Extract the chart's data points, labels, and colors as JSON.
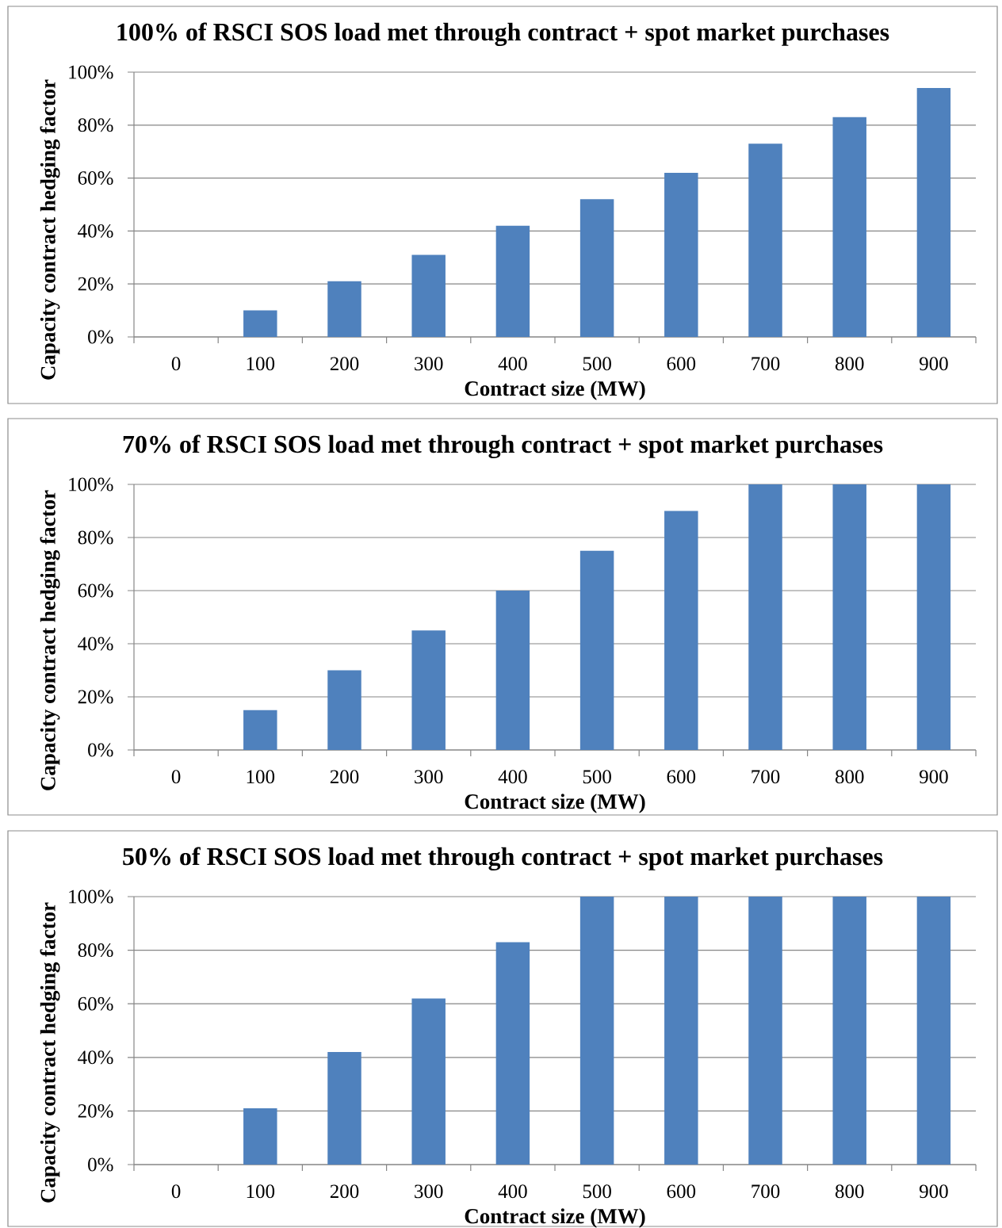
{
  "chart_data": [
    {
      "type": "bar",
      "title": "100% of RSCI SOS load met through contract + spot market purchases",
      "xlabel": "Contract size (MW)",
      "ylabel": "Capacity contract hedging factor",
      "categories": [
        "0",
        "100",
        "200",
        "300",
        "400",
        "500",
        "600",
        "700",
        "800",
        "900"
      ],
      "values": [
        0,
        10,
        21,
        31,
        42,
        52,
        62,
        73,
        83,
        94
      ],
      "color": "#4f81bd",
      "ylim": [
        0,
        100
      ],
      "yticks": [
        {
          "value": 0,
          "label": "0%"
        },
        {
          "value": 20,
          "label": "20%"
        },
        {
          "value": 40,
          "label": "40%"
        },
        {
          "value": 60,
          "label": "60%"
        },
        {
          "value": 80,
          "label": "80%"
        },
        {
          "value": 100,
          "label": "100%"
        }
      ],
      "grid": "y"
    },
    {
      "type": "bar",
      "title": "70% of RSCI SOS load met through contract + spot market purchases",
      "xlabel": "Contract size (MW)",
      "ylabel": "Capacity contract hedging factor",
      "categories": [
        "0",
        "100",
        "200",
        "300",
        "400",
        "500",
        "600",
        "700",
        "800",
        "900"
      ],
      "values": [
        0,
        15,
        30,
        45,
        60,
        75,
        90,
        100,
        100,
        100
      ],
      "color": "#4f81bd",
      "ylim": [
        0,
        100
      ],
      "yticks": [
        {
          "value": 0,
          "label": "0%"
        },
        {
          "value": 20,
          "label": "20%"
        },
        {
          "value": 40,
          "label": "40%"
        },
        {
          "value": 60,
          "label": "60%"
        },
        {
          "value": 80,
          "label": "80%"
        },
        {
          "value": 100,
          "label": "100%"
        }
      ],
      "grid": "y"
    },
    {
      "type": "bar",
      "title": "50% of RSCI SOS load met through contract + spot market purchases",
      "xlabel": "Contract size (MW)",
      "ylabel": "Capacity contract hedging factor",
      "categories": [
        "0",
        "100",
        "200",
        "300",
        "400",
        "500",
        "600",
        "700",
        "800",
        "900"
      ],
      "values": [
        0,
        21,
        42,
        62,
        83,
        100,
        100,
        100,
        100,
        100
      ],
      "color": "#4f81bd",
      "ylim": [
        0,
        100
      ],
      "yticks": [
        {
          "value": 0,
          "label": "0%"
        },
        {
          "value": 20,
          "label": "20%"
        },
        {
          "value": 40,
          "label": "40%"
        },
        {
          "value": 60,
          "label": "60%"
        },
        {
          "value": 80,
          "label": "80%"
        },
        {
          "value": 100,
          "label": "100%"
        }
      ],
      "grid": "y"
    }
  ]
}
